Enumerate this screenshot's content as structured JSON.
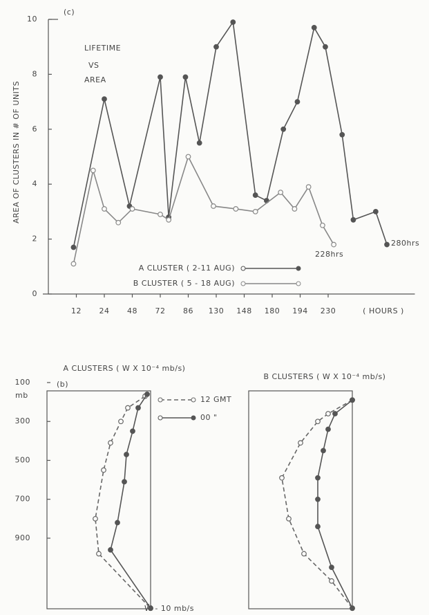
{
  "chart_data": [
    {
      "type": "line",
      "title": "(c)",
      "annotations": [
        "LIFETIME",
        "VS",
        "AREA",
        "228hrs",
        "280hrs"
      ],
      "ylabel": "AREA OF CLUSTERS IN # OF UNITS",
      "xlabel": "( HOURS )",
      "xlim": [
        0,
        13
      ],
      "xticks": [
        {
          "value": 1,
          "label": "12"
        },
        {
          "value": 2,
          "label": "24"
        },
        {
          "value": 3,
          "label": "48"
        },
        {
          "value": 4,
          "label": "72"
        },
        {
          "value": 5,
          "label": "86"
        },
        {
          "value": 6,
          "label": "130"
        },
        {
          "value": 7,
          "label": "148"
        },
        {
          "value": 8,
          "label": "180"
        },
        {
          "value": 9,
          "label": "194"
        },
        {
          "value": 10,
          "label": "230"
        }
      ],
      "ylim": [
        0,
        10
      ],
      "yticks": [
        0,
        2,
        4,
        6,
        8,
        10
      ],
      "series": [
        {
          "name": "A CLUSTER ( 2-11 AUG)",
          "color": "#555555",
          "marker": "filled",
          "dash": false,
          "x": [
            0.9,
            2.0,
            2.9,
            4.0,
            4.3,
            4.9,
            5.4,
            6.0,
            6.6,
            7.4,
            7.8,
            8.4,
            8.9,
            9.5,
            9.9,
            10.5,
            10.9,
            11.7,
            12.1
          ],
          "values": [
            1.7,
            7.1,
            3.2,
            7.9,
            2.8,
            7.9,
            5.5,
            9.0,
            9.9,
            3.6,
            3.4,
            6.0,
            7.0,
            9.7,
            9.0,
            5.8,
            2.7,
            3.0,
            1.8
          ]
        },
        {
          "name": "B CLUSTER ( 5 - 18 AUG)",
          "color": "#888888",
          "marker": "open",
          "dash": false,
          "x": [
            0.9,
            1.6,
            2.0,
            2.5,
            3.0,
            4.0,
            4.3,
            5.0,
            5.9,
            6.7,
            7.4,
            8.3,
            8.8,
            9.3,
            9.8,
            10.2
          ],
          "values": [
            1.1,
            4.5,
            3.1,
            2.6,
            3.1,
            2.9,
            2.7,
            5.0,
            3.2,
            3.1,
            3.0,
            3.7,
            3.1,
            3.9,
            2.5,
            1.8
          ]
        }
      ]
    },
    {
      "type": "line",
      "title": "A  CLUSTERS ( W X 10⁻⁴ mb/s)",
      "label": "(b)",
      "ylabel": "mb",
      "xlabel": "W̄ - 10 mb/s",
      "xlim": [
        -15,
        0
      ],
      "ylim": [
        1270,
        100
      ],
      "yticks": [
        100,
        300,
        500,
        700,
        900
      ],
      "series": [
        {
          "name": "12 GMT",
          "color": "#666666",
          "marker": "open",
          "dash": true,
          "x": [
            -0.8,
            -3.3,
            -4.3,
            -5.8,
            -6.8,
            -8.0,
            -7.5,
            0
          ],
          "values": [
            170,
            230,
            300,
            410,
            550,
            800,
            980,
            1260
          ]
        },
        {
          "name": "00 \"",
          "color": "#555555",
          "marker": "filled",
          "dash": false,
          "x": [
            -0.5,
            -1.8,
            -2.6,
            -3.5,
            -3.8,
            -4.8,
            -5.8,
            0
          ],
          "values": [
            160,
            230,
            350,
            470,
            610,
            820,
            960,
            1260
          ]
        }
      ]
    },
    {
      "type": "line",
      "title": "B  CLUSTERS ( W X 10⁻⁴ mb/s)",
      "xlim": [
        -15,
        0
      ],
      "ylim": [
        1270,
        100
      ],
      "series": [
        {
          "name": "12 GMT",
          "color": "#666666",
          "marker": "open",
          "dash": true,
          "x": [
            0,
            -3.5,
            -5.0,
            -7.5,
            -10.2,
            -9.2,
            -7.0,
            -3.0,
            0
          ],
          "values": [
            190,
            260,
            300,
            410,
            590,
            800,
            980,
            1120,
            1260
          ]
        },
        {
          "name": "00 \"",
          "color": "#555555",
          "marker": "filled",
          "dash": false,
          "x": [
            0,
            -2.5,
            -3.5,
            -4.2,
            -5.0,
            -5.0,
            -5.0,
            -3.0,
            0
          ],
          "values": [
            190,
            260,
            340,
            450,
            590,
            700,
            840,
            1050,
            1260
          ]
        }
      ]
    }
  ]
}
